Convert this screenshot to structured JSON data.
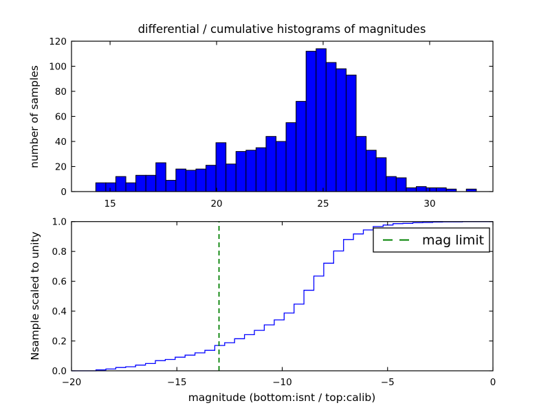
{
  "chart_data": [
    {
      "type": "bar",
      "subtype": "histogram",
      "title": "differential / cumulative histograms of magnitudes",
      "ylabel": "number of samples",
      "xlabel": "",
      "xlim": [
        13.19,
        32.97
      ],
      "ylim": [
        0,
        120
      ],
      "x_tick_values": [
        15,
        20,
        25,
        30
      ],
      "x_tick_labels": [
        "15",
        "20",
        "25",
        "30"
      ],
      "y_tick_values": [
        0,
        20,
        40,
        60,
        80,
        100,
        120
      ],
      "y_tick_labels": [
        "0",
        "20",
        "40",
        "60",
        "80",
        "100",
        "120"
      ],
      "grid": false,
      "bin_start": 14.33,
      "bin_width": 0.47,
      "counts": [
        7,
        7,
        12,
        7,
        13,
        13,
        23,
        9,
        18,
        17,
        18,
        21,
        39,
        22,
        32,
        33,
        35,
        44,
        40,
        55,
        72,
        112,
        114,
        103,
        98,
        93,
        44,
        33,
        27,
        12,
        11,
        3,
        4,
        3,
        3,
        2,
        0,
        2
      ],
      "bar_fill_color": "#0000ff",
      "bar_edge_color": "#000000"
    },
    {
      "type": "line",
      "subtype": "cumulative-step",
      "title": "",
      "ylabel": "Nsample scaled to unity",
      "xlabel": "magnitude (bottom:isnt / top:calib)",
      "xlim": [
        -20,
        0
      ],
      "ylim": [
        0,
        1.0
      ],
      "x_tick_values": [
        -20,
        -15,
        -10,
        -5,
        0
      ],
      "x_tick_labels": [
        "−20",
        "−15",
        "−10",
        "−5",
        "0"
      ],
      "y_tick_values": [
        0,
        0.2,
        0.4,
        0.6,
        0.8,
        1.0
      ],
      "y_tick_labels": [
        "0.0",
        "0.2",
        "0.4",
        "0.6",
        "0.8",
        "1.0"
      ],
      "grid": false,
      "bin_start": -18.84,
      "bin_width": 0.47,
      "cumulative_fractions": [
        0.006,
        0.012,
        0.022,
        0.027,
        0.038,
        0.049,
        0.068,
        0.076,
        0.091,
        0.105,
        0.12,
        0.137,
        0.17,
        0.188,
        0.215,
        0.242,
        0.271,
        0.308,
        0.341,
        0.387,
        0.447,
        0.54,
        0.635,
        0.721,
        0.803,
        0.88,
        0.917,
        0.944,
        0.967,
        0.977,
        0.986,
        0.988,
        0.992,
        0.994,
        0.997,
        0.998,
        0.998,
        1.0
      ],
      "line_color": "#0000ff",
      "mag_limit_value": -13,
      "mag_limit_color": "#008000",
      "mag_limit_style": "dashed",
      "legend_label": "mag limit",
      "legend_position": "upper right"
    }
  ],
  "figure": {
    "background_color": "#ffffff",
    "axis_color": "#000000"
  }
}
